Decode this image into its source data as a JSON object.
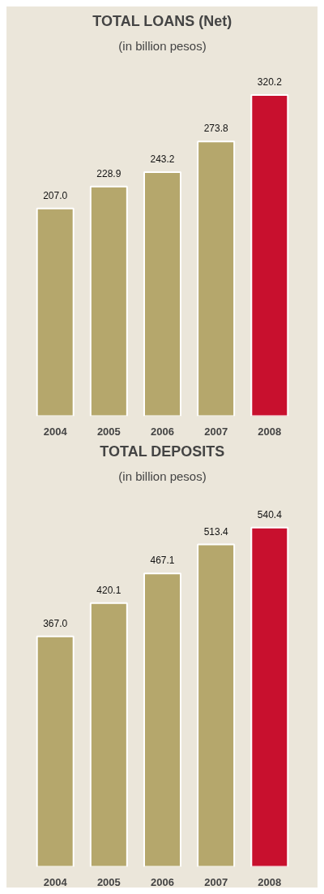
{
  "chart_data": [
    {
      "type": "bar",
      "title": "TOTAL LOANS (Net)",
      "subtitle": "(in billion pesos)",
      "categories": [
        "2004",
        "2005",
        "2006",
        "2007",
        "2008"
      ],
      "values": [
        207.0,
        228.9,
        243.2,
        273.8,
        320.2
      ],
      "value_labels": [
        "207.0",
        "228.9",
        "243.2",
        "273.8",
        "320.2"
      ],
      "colors": [
        "#b5a76c",
        "#b5a76c",
        "#b5a76c",
        "#b5a76c",
        "#c8102e"
      ],
      "tick_labels": "x",
      "grid": false
    },
    {
      "type": "bar",
      "title": "TOTAL DEPOSITS",
      "subtitle": "(in billion pesos)",
      "categories": [
        "2004",
        "2005",
        "2006",
        "2007",
        "2008"
      ],
      "values": [
        367.0,
        420.1,
        467.1,
        513.4,
        540.4
      ],
      "value_labels": [
        "367.0",
        "420.1",
        "467.1",
        "513.4",
        "540.4"
      ],
      "colors": [
        "#b5a76c",
        "#b5a76c",
        "#b5a76c",
        "#b5a76c",
        "#c8102e"
      ],
      "tick_labels": "x",
      "grid": false
    }
  ]
}
